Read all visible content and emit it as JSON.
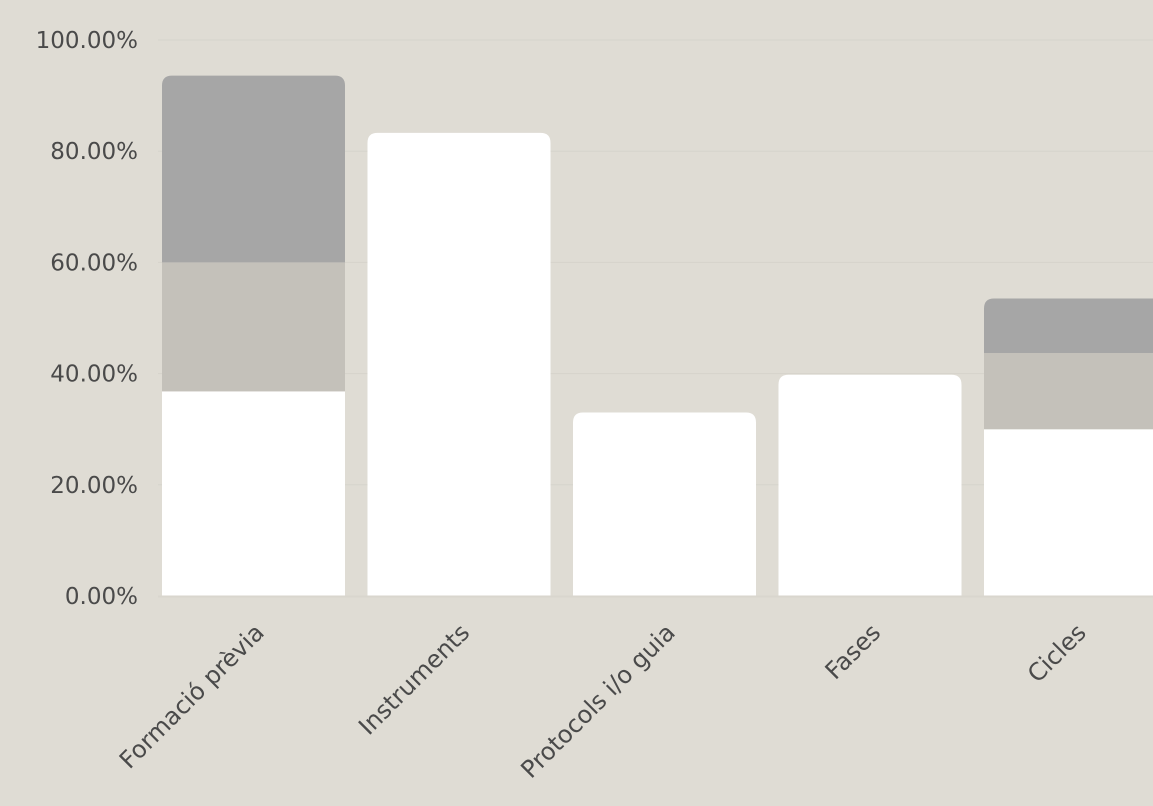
{
  "chart_data": {
    "type": "bar",
    "stacked": true,
    "title": "",
    "xlabel": "",
    "ylabel": "",
    "ylim": [
      0,
      100
    ],
    "y_tick_values": [
      0,
      20,
      40,
      60,
      80,
      100
    ],
    "y_tick_labels": [
      "0.00%",
      "20.00%",
      "40.00%",
      "60.00%",
      "80.00%",
      "100.00%"
    ],
    "categories": [
      "Formació prèvia",
      "Instruments",
      "Protocols i/o guia",
      "Fases",
      "Cicles"
    ],
    "series": [
      {
        "color": "#ffffff",
        "values": [
          36.8,
          83.3,
          33.0,
          39.8,
          30.0
        ]
      },
      {
        "color": "#c4c1ba",
        "values": [
          23.2,
          0,
          0,
          0,
          13.7
        ]
      },
      {
        "color": "#a6a6a6",
        "values": [
          33.6,
          0,
          0,
          0,
          9.8
        ]
      }
    ],
    "grid": true,
    "legend": "none",
    "background_color": "#dfdcd4",
    "gridline_color": "#d6d3cb",
    "axis_line_color": "#d9d6ce"
  }
}
